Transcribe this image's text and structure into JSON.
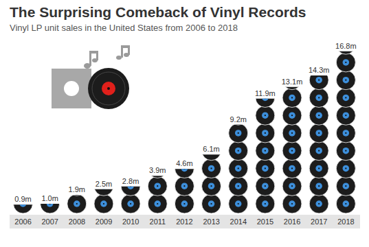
{
  "chart_data": {
    "type": "bar",
    "title": "The Surprising Comeback of Vinyl Records",
    "subtitle": "Vinyl LP unit sales in the United States from 2006 to 2018",
    "categories": [
      "2006",
      "2007",
      "2008",
      "2009",
      "2010",
      "2011",
      "2012",
      "2013",
      "2014",
      "2015",
      "2016",
      "2017",
      "2018"
    ],
    "values": [
      0.9,
      1.0,
      1.9,
      2.5,
      2.8,
      3.9,
      4.6,
      6.1,
      9.2,
      11.9,
      13.1,
      14.3,
      16.8
    ],
    "value_labels": [
      "0.9m",
      "1.0m",
      "1.9m",
      "2.5m",
      "2.8m",
      "3.9m",
      "4.6m",
      "6.1m",
      "9.2m",
      "11.9m",
      "13.1m",
      "14.3m",
      "16.8m"
    ],
    "color": "#1c1c1c",
    "ylim": [
      0,
      17
    ],
    "data_labels": true,
    "tick_labels": "x"
  }
}
